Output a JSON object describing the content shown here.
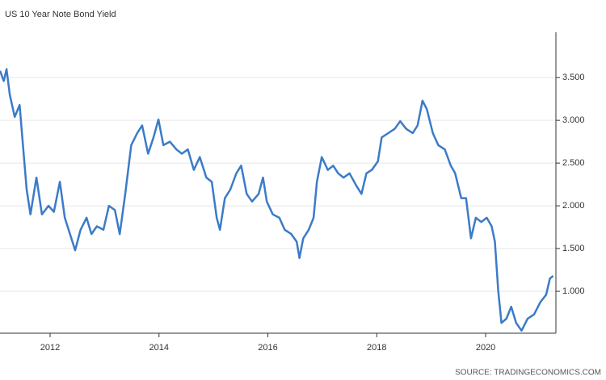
{
  "chart_data": {
    "type": "line",
    "title": "US 10 Year Note Bond Yield",
    "source": "SOURCE: TRADINGECONOMICS.COM",
    "x": [
      2011.08,
      2011.15,
      2011.2,
      2011.26,
      2011.35,
      2011.44,
      2011.49,
      2011.57,
      2011.64,
      2011.75,
      2011.85,
      2011.97,
      2012.07,
      2012.18,
      2012.27,
      2012.39,
      2012.46,
      2012.56,
      2012.67,
      2012.76,
      2012.86,
      2012.98,
      2013.08,
      2013.19,
      2013.28,
      2013.38,
      2013.49,
      2013.6,
      2013.69,
      2013.8,
      2013.9,
      2013.99,
      2014.08,
      2014.2,
      2014.32,
      2014.42,
      2014.53,
      2014.64,
      2014.75,
      2014.87,
      2014.97,
      2015.06,
      2015.12,
      2015.21,
      2015.31,
      2015.42,
      2015.51,
      2015.61,
      2015.71,
      2015.83,
      2015.91,
      2015.98,
      2016.09,
      2016.21,
      2016.31,
      2016.43,
      2016.53,
      2016.58,
      2016.65,
      2016.75,
      2016.84,
      2016.9,
      2016.99,
      2017.1,
      2017.2,
      2017.29,
      2017.39,
      2017.5,
      2017.62,
      2017.72,
      2017.81,
      2017.91,
      2018.02,
      2018.09,
      2018.21,
      2018.33,
      2018.43,
      2018.54,
      2018.66,
      2018.75,
      2018.84,
      2018.92,
      2019.03,
      2019.13,
      2019.25,
      2019.36,
      2019.44,
      2019.55,
      2019.64,
      2019.73,
      2019.82,
      2019.92,
      2020.02,
      2020.11,
      2020.17,
      2020.23,
      2020.29,
      2020.38,
      2020.47,
      2020.56,
      2020.66,
      2020.77,
      2020.89,
      2021.0,
      2021.11,
      2021.18,
      2021.24
    ],
    "series": [
      {
        "name": "US 10 Year Note Bond Yield",
        "color": "#3b7bc8",
        "values": [
          3.58,
          3.46,
          3.6,
          3.3,
          3.04,
          3.18,
          2.8,
          2.19,
          1.9,
          2.33,
          1.9,
          2.0,
          1.93,
          2.28,
          1.86,
          1.62,
          1.48,
          1.72,
          1.86,
          1.67,
          1.76,
          1.72,
          2.0,
          1.95,
          1.67,
          2.14,
          2.71,
          2.85,
          2.94,
          2.61,
          2.8,
          3.01,
          2.71,
          2.75,
          2.66,
          2.61,
          2.66,
          2.42,
          2.57,
          2.33,
          2.28,
          1.86,
          1.72,
          2.09,
          2.19,
          2.38,
          2.47,
          2.14,
          2.05,
          2.14,
          2.33,
          2.05,
          1.9,
          1.86,
          1.72,
          1.67,
          1.58,
          1.39,
          1.62,
          1.72,
          1.86,
          2.28,
          2.57,
          2.42,
          2.47,
          2.38,
          2.33,
          2.38,
          2.24,
          2.14,
          2.38,
          2.42,
          2.52,
          2.8,
          2.85,
          2.9,
          2.99,
          2.9,
          2.85,
          2.94,
          3.23,
          3.13,
          2.85,
          2.71,
          2.66,
          2.47,
          2.38,
          2.09,
          2.09,
          1.62,
          1.86,
          1.81,
          1.86,
          1.76,
          1.58,
          1.01,
          0.63,
          0.68,
          0.82,
          0.63,
          0.54,
          0.68,
          0.73,
          0.87,
          0.96,
          1.15,
          1.18
        ]
      }
    ],
    "xlim": [
      2011.08,
      2021.29
    ],
    "xticks": [
      2012,
      2014,
      2016,
      2018,
      2020
    ],
    "ylim": [
      0.51,
      4.03
    ],
    "yticks": [
      {
        "value": 1.0,
        "label": "1.000"
      },
      {
        "value": 1.5,
        "label": "1.500"
      },
      {
        "value": 2.0,
        "label": "2.000"
      },
      {
        "value": 2.5,
        "label": "2.500"
      },
      {
        "value": 3.0,
        "label": "3.000"
      },
      {
        "value": 3.5,
        "label": "3.500"
      }
    ],
    "grid": true
  }
}
